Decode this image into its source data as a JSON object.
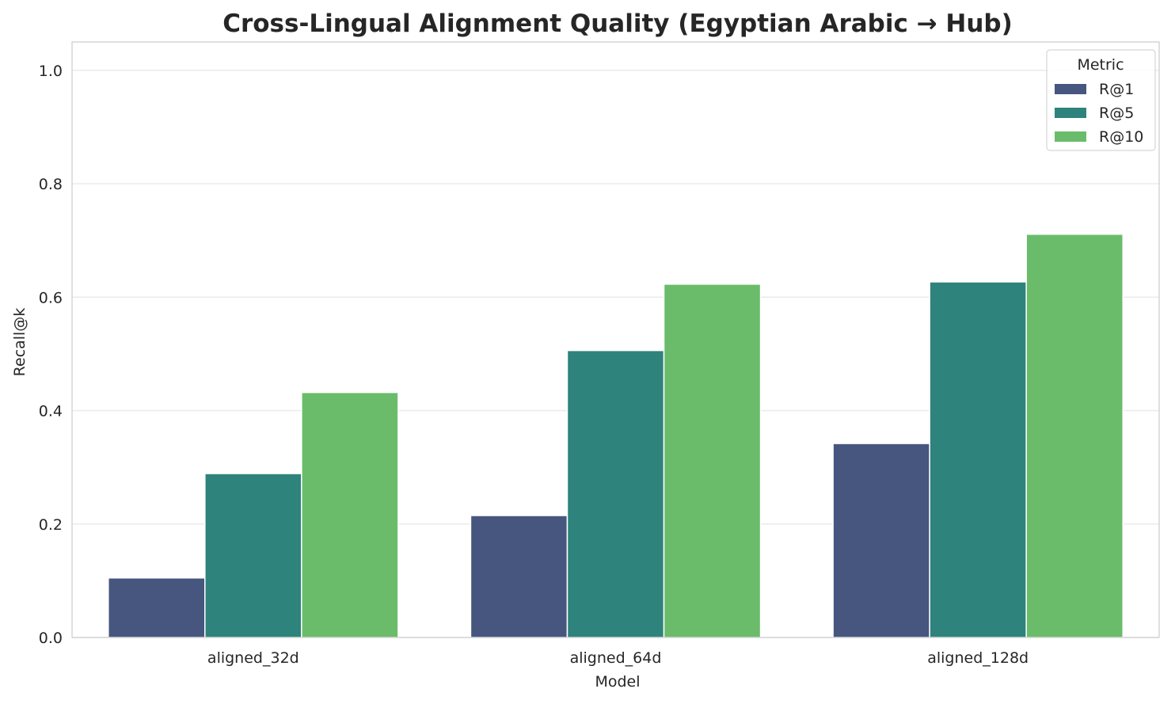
{
  "chart_data": {
    "type": "bar",
    "title": "Cross-Lingual Alignment Quality (Egyptian Arabic → Hub)",
    "xlabel": "Model",
    "ylabel": "Recall@k",
    "ylim": [
      0,
      1.05
    ],
    "yticks": [
      "0.0",
      "0.2",
      "0.4",
      "0.6",
      "0.8",
      "1.0"
    ],
    "categories": [
      "aligned_32d",
      "aligned_64d",
      "aligned_128d"
    ],
    "series": [
      {
        "name": "R@1",
        "color": "#46567f",
        "values": [
          0.105,
          0.215,
          0.342
        ]
      },
      {
        "name": "R@5",
        "color": "#2e837c",
        "values": [
          0.289,
          0.506,
          0.627
        ]
      },
      {
        "name": "R@10",
        "color": "#6abc6b",
        "values": [
          0.432,
          0.623,
          0.711
        ]
      }
    ],
    "legend": {
      "title": "Metric",
      "placement": "top-right"
    },
    "grid": "horizontal"
  }
}
